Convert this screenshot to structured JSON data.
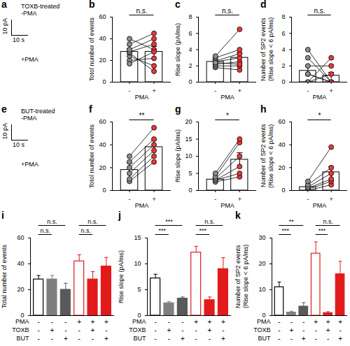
{
  "chart_data": [
    {
      "type": "trace",
      "panel": "a",
      "labels": [
        "TOXB-treated",
        "-PMA",
        "+PMA"
      ],
      "scale_bar": [
        "10 pA",
        "10 s"
      ]
    },
    {
      "type": "paired",
      "panel": "b",
      "ylabel": [
        "Totol number of events"
      ],
      "xlabel": "PMA",
      "categories": [
        "-",
        "+"
      ],
      "values": [
        28,
        28
      ],
      "errors": [
        3,
        5
      ],
      "colors": [
        "#8c8c8c",
        "#e8383d"
      ],
      "points": [
        [
          20,
          24,
          27,
          28,
          30,
          35,
          40,
          17
        ],
        [
          22,
          15,
          10,
          35,
          40,
          45,
          30,
          28
        ]
      ],
      "ylim": [
        0,
        60
      ],
      "yticks": [
        0,
        20,
        40,
        60
      ],
      "annotation": "n.s."
    },
    {
      "type": "paired",
      "panel": "c",
      "ylabel": [
        "Rise slope (pA/ms)"
      ],
      "xlabel": "PMA",
      "categories": [
        "-",
        "+"
      ],
      "values": [
        2.5,
        3
      ],
      "errors": [
        0.3,
        0.6
      ],
      "colors": [
        "#8c8c8c",
        "#e8383d"
      ],
      "points": [
        [
          1.8,
          2,
          2.2,
          2.5,
          2.6,
          3,
          3.2,
          2.4
        ],
        [
          1.5,
          2,
          2.5,
          3,
          3.5,
          4,
          6.5,
          2.2
        ]
      ],
      "ylim": [
        0,
        8
      ],
      "yticks": [
        0,
        2,
        4,
        6,
        8
      ],
      "annotation": "n.s."
    },
    {
      "type": "paired",
      "panel": "d",
      "ylabel": [
        "Number of SP2 events",
        "(Rise slope < 6 pA/ms)"
      ],
      "xlabel": "PMA",
      "categories": [
        "-",
        "+"
      ],
      "values": [
        1.4,
        0.8
      ],
      "errors": [
        0.6,
        0.4
      ],
      "colors": [
        "#8c8c8c",
        "#e8383d"
      ],
      "points": [
        [
          0,
          0,
          0,
          1,
          2,
          3,
          4,
          1
        ],
        [
          0,
          1,
          3,
          0,
          2,
          0,
          0,
          0
        ]
      ],
      "ylim": [
        0,
        8
      ],
      "yticks": [
        0,
        2,
        4,
        6,
        8
      ],
      "annotation": "n.s."
    },
    {
      "type": "trace",
      "panel": "e",
      "labels": [
        "BUT-treated",
        "-PMA",
        "+PMA"
      ],
      "scale_bar": [
        "10 pA",
        "10 s"
      ]
    },
    {
      "type": "paired",
      "panel": "f",
      "ylabel": [
        "Totol number of events"
      ],
      "xlabel": "PMA",
      "categories": [
        "-",
        "+"
      ],
      "values": [
        18,
        38
      ],
      "errors": [
        6,
        6
      ],
      "colors": [
        "#8c8c8c",
        "#e8383d"
      ],
      "points": [
        [
          8,
          10,
          15,
          20,
          25,
          30
        ],
        [
          25,
          30,
          35,
          40,
          45,
          55
        ]
      ],
      "ylim": [
        0,
        60
      ],
      "yticks": [
        0,
        20,
        40,
        60
      ],
      "annotation": "**"
    },
    {
      "type": "paired",
      "panel": "g",
      "ylabel": [
        "Rise slope (pA/ms)"
      ],
      "xlabel": "PMA",
      "categories": [
        "-",
        "+"
      ],
      "values": [
        3.2,
        9
      ],
      "errors": [
        0.4,
        2
      ],
      "colors": [
        "#8c8c8c",
        "#e8383d"
      ],
      "points": [
        [
          2.5,
          3,
          3,
          3.5,
          4,
          5
        ],
        [
          4,
          5,
          7,
          10,
          14,
          15
        ]
      ],
      "ylim": [
        0,
        20
      ],
      "yticks": [
        0,
        5,
        10,
        15,
        20
      ],
      "annotation": "*"
    },
    {
      "type": "paired",
      "panel": "h",
      "ylabel": [
        "Number of SP2 events",
        "(Rise slope < 6 pA/ms)"
      ],
      "xlabel": "PMA",
      "categories": [
        "-",
        "+"
      ],
      "values": [
        3,
        16
      ],
      "errors": [
        1.5,
        5
      ],
      "colors": [
        "#8c8c8c",
        "#e8383d"
      ],
      "points": [
        [
          0,
          1,
          2,
          3,
          5,
          8
        ],
        [
          5,
          8,
          10,
          15,
          20,
          38
        ]
      ],
      "ylim": [
        0,
        60
      ],
      "yticks": [
        0,
        20,
        40,
        60
      ],
      "annotation": "*"
    },
    {
      "type": "bar",
      "panel": "i",
      "ylabel": [
        "Total number of events"
      ],
      "categories": [
        null,
        null,
        null,
        null,
        null,
        null
      ],
      "values": [
        28,
        28,
        20,
        42,
        28,
        38
      ],
      "errors": [
        3,
        3,
        5,
        5,
        6,
        7
      ],
      "colors": [
        "#ffffff",
        "#7f7f7f",
        "#595959",
        "#ffffff",
        "#e31a1c",
        "#e31a1c"
      ],
      "edge_colors": [
        "#000000",
        "#7f7f7f",
        "#595959",
        "#e31a1c",
        "#e31a1c",
        "#e31a1c"
      ],
      "conditions": [
        {
          "name": "PMA",
          "values": [
            "-",
            "-",
            "-",
            "+",
            "+",
            "+"
          ]
        },
        {
          "name": "TOXB",
          "values": [
            "-",
            "+",
            "-",
            "-",
            "+",
            "-"
          ]
        },
        {
          "name": "BUT",
          "values": [
            "-",
            "-",
            "+",
            "-",
            "-",
            "+"
          ]
        }
      ],
      "ylim": [
        0,
        60
      ],
      "yticks": [
        0,
        20,
        40,
        60
      ],
      "annotations": [
        "n.s.",
        "n.s.",
        "n.s.",
        "n.s."
      ]
    },
    {
      "type": "bar",
      "panel": "j",
      "ylabel": [
        "Rise slope (pA/ms)"
      ],
      "categories": [
        null,
        null,
        null,
        null,
        null,
        null
      ],
      "values": [
        7.2,
        2.4,
        3.3,
        12.2,
        3,
        9
      ],
      "errors": [
        0.8,
        0.3,
        0.3,
        1.2,
        0.6,
        2.2
      ],
      "colors": [
        "#ffffff",
        "#7f7f7f",
        "#595959",
        "#ffffff",
        "#e31a1c",
        "#e31a1c"
      ],
      "edge_colors": [
        "#000000",
        "#7f7f7f",
        "#595959",
        "#e31a1c",
        "#e31a1c",
        "#e31a1c"
      ],
      "conditions": [
        {
          "name": "PMA",
          "values": [
            "-",
            "-",
            "-",
            "+",
            "+",
            "+"
          ]
        },
        {
          "name": "TOXB",
          "values": [
            "-",
            "+",
            "-",
            "-",
            "+",
            "-"
          ]
        },
        {
          "name": "BUT",
          "values": [
            "-",
            "-",
            "+",
            "-",
            "-",
            "+"
          ]
        }
      ],
      "ylim": [
        0,
        15
      ],
      "yticks": [
        0,
        5,
        10,
        15
      ],
      "annotations": [
        "***",
        "***",
        "***",
        "n.s."
      ]
    },
    {
      "type": "bar",
      "panel": "k",
      "ylabel": [
        "Number of SP2 events",
        "(Rise slope < 6 pA/ms)"
      ],
      "categories": [
        null,
        null,
        null,
        null,
        null,
        null
      ],
      "values": [
        11,
        1.2,
        3.5,
        24,
        1,
        16
      ],
      "errors": [
        2,
        0.5,
        1.5,
        4.5,
        0.5,
        5
      ],
      "colors": [
        "#ffffff",
        "#7f7f7f",
        "#595959",
        "#ffffff",
        "#e31a1c",
        "#e31a1c"
      ],
      "edge_colors": [
        "#000000",
        "#7f7f7f",
        "#595959",
        "#e31a1c",
        "#e31a1c",
        "#e31a1c"
      ],
      "conditions": [
        {
          "name": "PMA",
          "values": [
            "-",
            "-",
            "-",
            "+",
            "+",
            "+"
          ]
        },
        {
          "name": "TOXB",
          "values": [
            "-",
            "+",
            "-",
            "-",
            "+",
            "-"
          ]
        },
        {
          "name": "BUT",
          "values": [
            "-",
            "-",
            "+",
            "-",
            "-",
            "+"
          ]
        }
      ],
      "ylim": [
        0,
        30
      ],
      "yticks": [
        0,
        10,
        20,
        30
      ],
      "annotations": [
        "***",
        "**",
        "***",
        "n.s."
      ]
    }
  ]
}
